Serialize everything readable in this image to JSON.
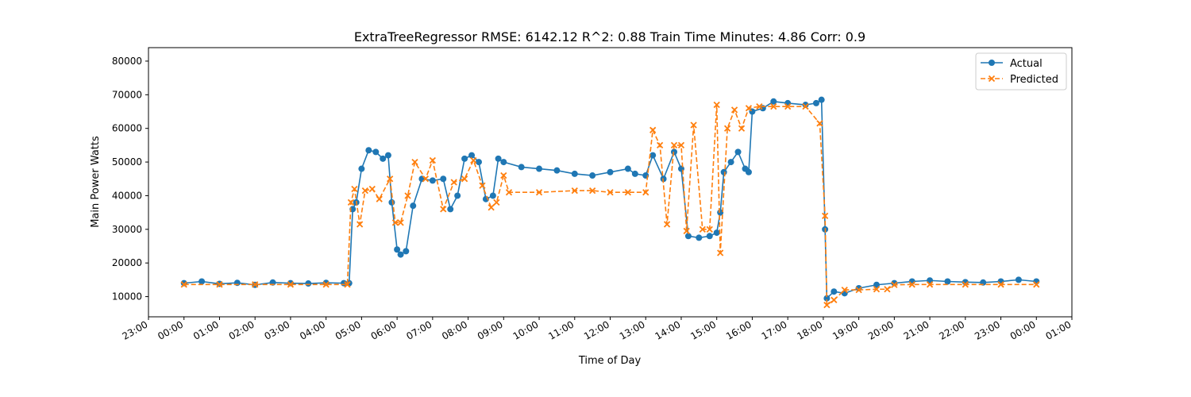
{
  "chart_data": {
    "type": "line",
    "title": "ExtraTreeRegressor RMSE: 6142.12 R^2: 0.88 Train Time Minutes: 4.86 Corr: 0.9",
    "xlabel": "Time of Day",
    "ylabel": "Main Power Watts",
    "x_unit": "hours",
    "xlim": [
      -1.0,
      25.0
    ],
    "ylim": [
      4000,
      84000
    ],
    "x_ticks": [
      -1,
      0,
      1,
      2,
      3,
      4,
      5,
      6,
      7,
      8,
      9,
      10,
      11,
      12,
      13,
      14,
      15,
      16,
      17,
      18,
      19,
      20,
      21,
      22,
      23,
      24,
      25
    ],
    "x_tick_labels": [
      "23:00",
      "00:00",
      "01:00",
      "02:00",
      "03:00",
      "04:00",
      "05:00",
      "06:00",
      "07:00",
      "08:00",
      "09:00",
      "10:00",
      "11:00",
      "12:00",
      "13:00",
      "14:00",
      "15:00",
      "16:00",
      "17:00",
      "18:00",
      "19:00",
      "20:00",
      "21:00",
      "22:00",
      "23:00",
      "00:00",
      "01:00"
    ],
    "y_ticks": [
      10000,
      20000,
      30000,
      40000,
      50000,
      60000,
      70000,
      80000
    ],
    "y_tick_labels": [
      "10000",
      "20000",
      "30000",
      "40000",
      "50000",
      "60000",
      "70000",
      "80000"
    ],
    "grid": false,
    "legend_position": "top-right",
    "series": [
      {
        "name": "Actual",
        "color": "#1f77b4",
        "marker": "circle",
        "line": "solid",
        "x": [
          0.0,
          0.5,
          1.0,
          1.5,
          2.0,
          2.5,
          3.0,
          3.5,
          4.0,
          4.5,
          4.65,
          4.75,
          4.85,
          5.0,
          5.2,
          5.4,
          5.6,
          5.75,
          5.85,
          6.0,
          6.1,
          6.25,
          6.45,
          6.7,
          7.0,
          7.3,
          7.5,
          7.7,
          7.9,
          8.1,
          8.3,
          8.5,
          8.7,
          8.85,
          9.0,
          9.5,
          10.0,
          10.5,
          11.0,
          11.5,
          12.0,
          12.5,
          12.7,
          13.0,
          13.2,
          13.5,
          13.8,
          14.0,
          14.2,
          14.5,
          14.8,
          15.0,
          15.1,
          15.2,
          15.4,
          15.6,
          15.8,
          15.9,
          16.0,
          16.3,
          16.6,
          17.0,
          17.5,
          17.8,
          17.95,
          18.05,
          18.1,
          18.3,
          18.6,
          19.0,
          19.5,
          20.0,
          20.5,
          21.0,
          21.5,
          22.0,
          22.5,
          23.0,
          23.5,
          24.0
        ],
        "y": [
          14000,
          14500,
          13800,
          14100,
          13500,
          14200,
          14000,
          13900,
          14100,
          14000,
          14000,
          36000,
          38000,
          48000,
          53500,
          53000,
          51000,
          52000,
          38000,
          24000,
          22500,
          23500,
          37000,
          45000,
          44500,
          45000,
          36000,
          40000,
          51000,
          52000,
          50000,
          39000,
          40000,
          51000,
          50000,
          48500,
          48000,
          47500,
          46500,
          46000,
          47000,
          48000,
          46500,
          46000,
          52000,
          45000,
          53000,
          48000,
          28000,
          27500,
          28000,
          29000,
          35000,
          47000,
          50000,
          53000,
          48000,
          47000,
          65000,
          66000,
          68000,
          67500,
          67000,
          67500,
          68500,
          30000,
          9500,
          11500,
          11000,
          12500,
          13500,
          14000,
          14500,
          14800,
          14500,
          14300,
          14200,
          14500,
          15000,
          14500
        ]
      },
      {
        "name": "Predicted",
        "color": "#ff7f0e",
        "marker": "x",
        "line": "dashed",
        "x": [
          0.0,
          1.0,
          2.0,
          3.0,
          4.0,
          4.6,
          4.7,
          4.8,
          4.95,
          5.1,
          5.3,
          5.5,
          5.8,
          5.95,
          6.1,
          6.3,
          6.5,
          6.8,
          7.0,
          7.3,
          7.6,
          7.9,
          8.15,
          8.4,
          8.65,
          8.8,
          9.0,
          9.15,
          10.0,
          11.0,
          11.5,
          12.0,
          12.5,
          13.0,
          13.2,
          13.4,
          13.6,
          13.8,
          14.0,
          14.15,
          14.35,
          14.6,
          14.8,
          15.0,
          15.1,
          15.3,
          15.5,
          15.7,
          15.9,
          16.2,
          16.6,
          17.0,
          17.5,
          17.9,
          18.05,
          18.1,
          18.3,
          18.6,
          19.0,
          19.5,
          19.8,
          20.0,
          20.5,
          21.0,
          22.0,
          23.0,
          24.0
        ],
        "y": [
          13600,
          13600,
          13600,
          13600,
          13600,
          13600,
          38000,
          42000,
          31500,
          41500,
          42000,
          39000,
          45000,
          32000,
          32000,
          40000,
          50000,
          45000,
          50500,
          36000,
          44000,
          45000,
          50500,
          43000,
          36500,
          38000,
          46000,
          41000,
          41000,
          41500,
          41500,
          41000,
          41000,
          41000,
          59500,
          55000,
          31500,
          55000,
          55000,
          29500,
          61000,
          30000,
          30000,
          67000,
          23000,
          60000,
          65500,
          60000,
          66000,
          66500,
          66500,
          66500,
          66500,
          61500,
          34000,
          7500,
          9000,
          12000,
          12000,
          12200,
          12200,
          13500,
          13600,
          13600,
          13600,
          13600,
          13600
        ]
      }
    ]
  }
}
